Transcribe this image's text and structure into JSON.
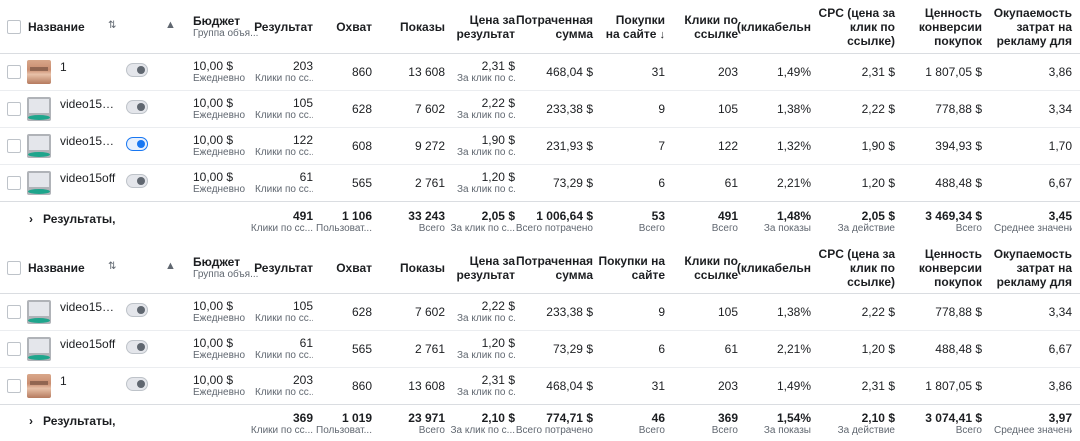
{
  "headers": {
    "name": "Название",
    "budget": "Бюджет",
    "budget_sub": "Группа объя...",
    "results": "Результат",
    "reach": "Охват",
    "impressions": "Показы",
    "cost_per_result": [
      "Цена за",
      "результат"
    ],
    "spent": [
      "Потраченная",
      "сумма"
    ],
    "purchases": [
      "Покупки",
      "на сайте"
    ],
    "purchases_t2": [
      "Покупки на",
      "сайте"
    ],
    "link_clicks": [
      "Клики по",
      "ссылке"
    ],
    "ctr": "(кликабельн",
    "cpc": [
      "CPC (цена за",
      "клик по",
      "ссылке)"
    ],
    "conv_value": [
      "Ценность",
      "конверсии",
      "покупок"
    ],
    "roas": [
      "Окупаемость",
      "затрат на",
      "рекламу для"
    ]
  },
  "icons": {
    "sort": "sort-icon",
    "warning": "warning-icon",
    "chevron": "chevron-right-icon",
    "sort_down": "sort-down-icon"
  },
  "table1": {
    "rows": [
      {
        "thumb": "face",
        "toggle": false,
        "name": "1",
        "budget": "10,00 $",
        "budget_sub": "Ежедневно",
        "results": "203",
        "results_sub": "Клики по сс...",
        "reach": "860",
        "impressions": "13 608",
        "cpr": "2,31 $",
        "cpr_sub": "За клик по с...",
        "spent": "468,04 $",
        "purchases": "31",
        "clicks": "203",
        "ctr": "1,49%",
        "cpc": "2,31 $",
        "conv": "1 807,05 $",
        "roas": "3,86"
      },
      {
        "thumb": "video",
        "toggle": false,
        "name": "video15o...",
        "budget": "10,00 $",
        "budget_sub": "Ежедневно",
        "results": "105",
        "results_sub": "Клики по сс...",
        "reach": "628",
        "impressions": "7 602",
        "cpr": "2,22 $",
        "cpr_sub": "За клик по с...",
        "spent": "233,38 $",
        "purchases": "9",
        "clicks": "105",
        "ctr": "1,38%",
        "cpc": "2,22 $",
        "conv": "778,88 $",
        "roas": "3,34"
      },
      {
        "thumb": "video",
        "toggle": true,
        "name": "video15o...",
        "budget": "10,00 $",
        "budget_sub": "Ежедневно",
        "results": "122",
        "results_sub": "Клики по сс...",
        "reach": "608",
        "impressions": "9 272",
        "cpr": "1,90 $",
        "cpr_sub": "За клик по с...",
        "spent": "231,93 $",
        "purchases": "7",
        "clicks": "122",
        "ctr": "1,32%",
        "cpc": "1,90 $",
        "conv": "394,93 $",
        "roas": "1,70"
      },
      {
        "thumb": "video",
        "toggle": false,
        "name": "video15off",
        "budget": "10,00 $",
        "budget_sub": "Ежедневно",
        "results": "61",
        "results_sub": "Клики по сс...",
        "reach": "565",
        "impressions": "2 761",
        "cpr": "1,20 $",
        "cpr_sub": "За клик по с...",
        "spent": "73,29 $",
        "purchases": "6",
        "clicks": "61",
        "ctr": "2,21%",
        "cpc": "1,20 $",
        "conv": "488,48 $",
        "roas": "6,67"
      }
    ],
    "summary": {
      "label": "Результаты, ч",
      "results": "491",
      "results_sub": "Клики по сс...",
      "reach": "1 106",
      "reach_sub": "Пользоват...",
      "impressions": "33 243",
      "impressions_sub": "Всего",
      "cpr": "2,05 $",
      "cpr_sub": "За клик по с...",
      "spent": "1 006,64 $",
      "spent_sub": "Всего потрачено",
      "purchases": "53",
      "purchases_sub": "Всего",
      "clicks": "491",
      "clicks_sub": "Всего",
      "ctr": "1,48%",
      "ctr_sub": "За показы",
      "cpc": "2,05 $",
      "cpc_sub": "За действие",
      "conv": "3 469,34 $",
      "conv_sub": "Всего",
      "roas": "3,45",
      "roas_sub": "Среднее значение"
    }
  },
  "table2": {
    "rows": [
      {
        "thumb": "video",
        "toggle": false,
        "name": "video15o...",
        "budget": "10,00 $",
        "budget_sub": "Ежедневно",
        "results": "105",
        "results_sub": "Клики по сс...",
        "reach": "628",
        "impressions": "7 602",
        "cpr": "2,22 $",
        "cpr_sub": "За клик по с...",
        "spent": "233,38 $",
        "purchases": "9",
        "clicks": "105",
        "ctr": "1,38%",
        "cpc": "2,22 $",
        "conv": "778,88 $",
        "roas": "3,34"
      },
      {
        "thumb": "video",
        "toggle": false,
        "name": "video15off",
        "budget": "10,00 $",
        "budget_sub": "Ежедневно",
        "results": "61",
        "results_sub": "Клики по сс...",
        "reach": "565",
        "impressions": "2 761",
        "cpr": "1,20 $",
        "cpr_sub": "За клик по с...",
        "spent": "73,29 $",
        "purchases": "6",
        "clicks": "61",
        "ctr": "2,21%",
        "cpc": "1,20 $",
        "conv": "488,48 $",
        "roas": "6,67"
      },
      {
        "thumb": "face",
        "toggle": false,
        "name": "1",
        "budget": "10,00 $",
        "budget_sub": "Ежедневно",
        "results": "203",
        "results_sub": "Клики по сс...",
        "reach": "860",
        "impressions": "13 608",
        "cpr": "2,31 $",
        "cpr_sub": "За клик по с...",
        "spent": "468,04 $",
        "purchases": "31",
        "clicks": "203",
        "ctr": "1,49%",
        "cpc": "2,31 $",
        "conv": "1 807,05 $",
        "roas": "3,86"
      }
    ],
    "summary": {
      "label": "Результаты, ч",
      "results": "369",
      "results_sub": "Клики по сс...",
      "reach": "1 019",
      "reach_sub": "Пользоват...",
      "impressions": "23 971",
      "impressions_sub": "Всего",
      "cpr": "2,10 $",
      "cpr_sub": "За клик по с...",
      "spent": "774,71 $",
      "spent_sub": "Всего потрачено",
      "purchases": "46",
      "purchases_sub": "Всего",
      "clicks": "369",
      "clicks_sub": "Всего",
      "ctr": "1,54%",
      "ctr_sub": "За показы",
      "cpc": "2,10 $",
      "cpc_sub": "За действие",
      "conv": "3 074,41 $",
      "conv_sub": "Всего",
      "roas": "3,97",
      "roas_sub": "Среднее значение"
    }
  }
}
